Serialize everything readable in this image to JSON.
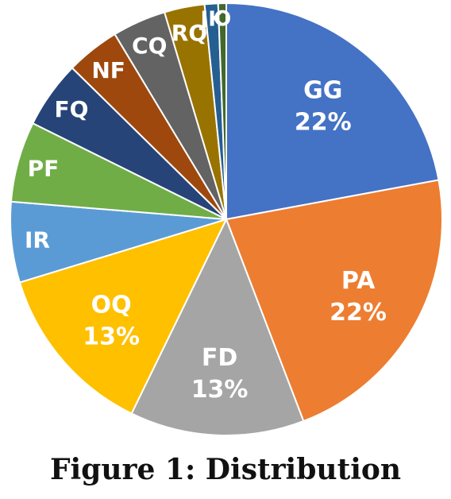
{
  "caption": "Figure 1: Distribution",
  "chart_data": {
    "type": "pie",
    "title": "",
    "start": "12 o'clock, clockwise",
    "slices": [
      {
        "label": "GG",
        "value": 22,
        "value_label": "22%",
        "color": "#4472C4"
      },
      {
        "label": "PA",
        "value": 22,
        "value_label": "22%",
        "color": "#ED7D31"
      },
      {
        "label": "FD",
        "value": 13,
        "value_label": "13%",
        "color": "#A5A5A5"
      },
      {
        "label": "OQ",
        "value": 13,
        "value_label": "13%",
        "color": "#FFC000"
      },
      {
        "label": "IR",
        "value": 6,
        "value_label": "",
        "color": "#5B9BD5"
      },
      {
        "label": "PF",
        "value": 6,
        "value_label": "",
        "color": "#70AD47"
      },
      {
        "label": "FQ",
        "value": 5,
        "value_label": "",
        "color": "#264478"
      },
      {
        "label": "NF",
        "value": 4,
        "value_label": "",
        "color": "#9E480E"
      },
      {
        "label": "CQ",
        "value": 4,
        "value_label": "",
        "color": "#636363"
      },
      {
        "label": "RQ",
        "value": 3,
        "value_label": "",
        "color": "#997300"
      },
      {
        "label": "JK",
        "value": 1,
        "value_label": "",
        "color": "#255E91"
      },
      {
        "label": "O",
        "value": 0.6,
        "value_label": "",
        "color": "#43682B"
      }
    ]
  }
}
